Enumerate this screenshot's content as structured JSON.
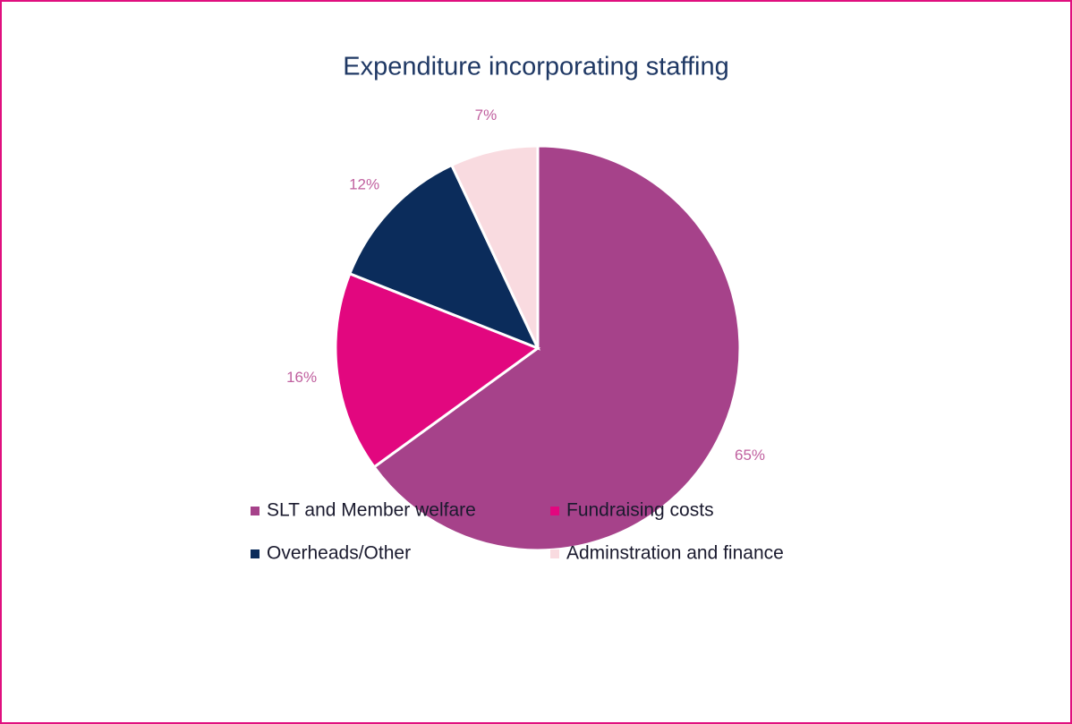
{
  "chart_data": {
    "type": "pie",
    "title": "Expenditure incorporating staffing",
    "categories": [
      "SLT and Member welfare",
      "Fundraising costs",
      "Overheads/Other",
      "Adminstration and finance"
    ],
    "values": [
      65,
      16,
      12,
      7
    ],
    "value_labels": [
      "65%",
      "16%",
      "12%",
      "7%"
    ],
    "colors": [
      "#a6428a",
      "#e2077f",
      "#0b2c5b",
      "#f9dbe0"
    ],
    "legend": "bottom"
  }
}
